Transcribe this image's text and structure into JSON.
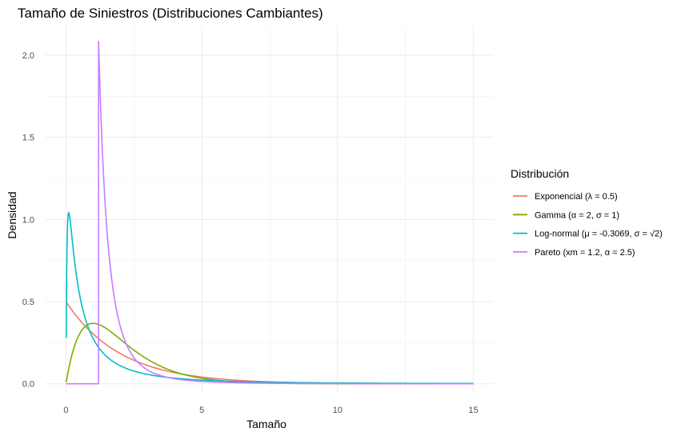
{
  "chart_data": {
    "type": "line",
    "title": "Tamaño de Siniestros (Distribuciones Cambiantes)",
    "xlabel": "Tamaño",
    "ylabel": "Densidad",
    "xlim": [
      -0.75,
      15.75
    ],
    "ylim": [
      -0.05,
      2.18
    ],
    "x_ticks": [
      0,
      5,
      10,
      15
    ],
    "x_tick_labels": [
      "0",
      "5",
      "10",
      "15"
    ],
    "y_ticks": [
      0.0,
      0.5,
      1.0,
      1.5,
      2.0
    ],
    "y_tick_labels": [
      "0.0",
      "0.5",
      "1.0",
      "1.5",
      "2.0"
    ],
    "grid": true,
    "legend": {
      "title": "Distribución",
      "position": "right"
    },
    "x_range": [
      0.01,
      15
    ],
    "series": [
      {
        "name": "Exponencial (λ = 0.5)",
        "color": "#F8766D",
        "distribution": "exponential",
        "params": {
          "lambda": 0.5
        }
      },
      {
        "name": "Gamma (α = 2, σ = 1)",
        "color": "#7CAE00",
        "distribution": "gamma",
        "params": {
          "shape": 2,
          "scale": 1
        }
      },
      {
        "name": "Log-normal (μ = -0.3069, σ = √2)",
        "color": "#00BFC4",
        "distribution": "lognormal",
        "params": {
          "mu": -0.3069,
          "sigma": 1.4142
        }
      },
      {
        "name": "Pareto (xm = 1.2, α = 2.5)",
        "color": "#C77CFF",
        "distribution": "pareto",
        "params": {
          "xm": 1.2,
          "alpha": 2.5
        }
      }
    ]
  }
}
